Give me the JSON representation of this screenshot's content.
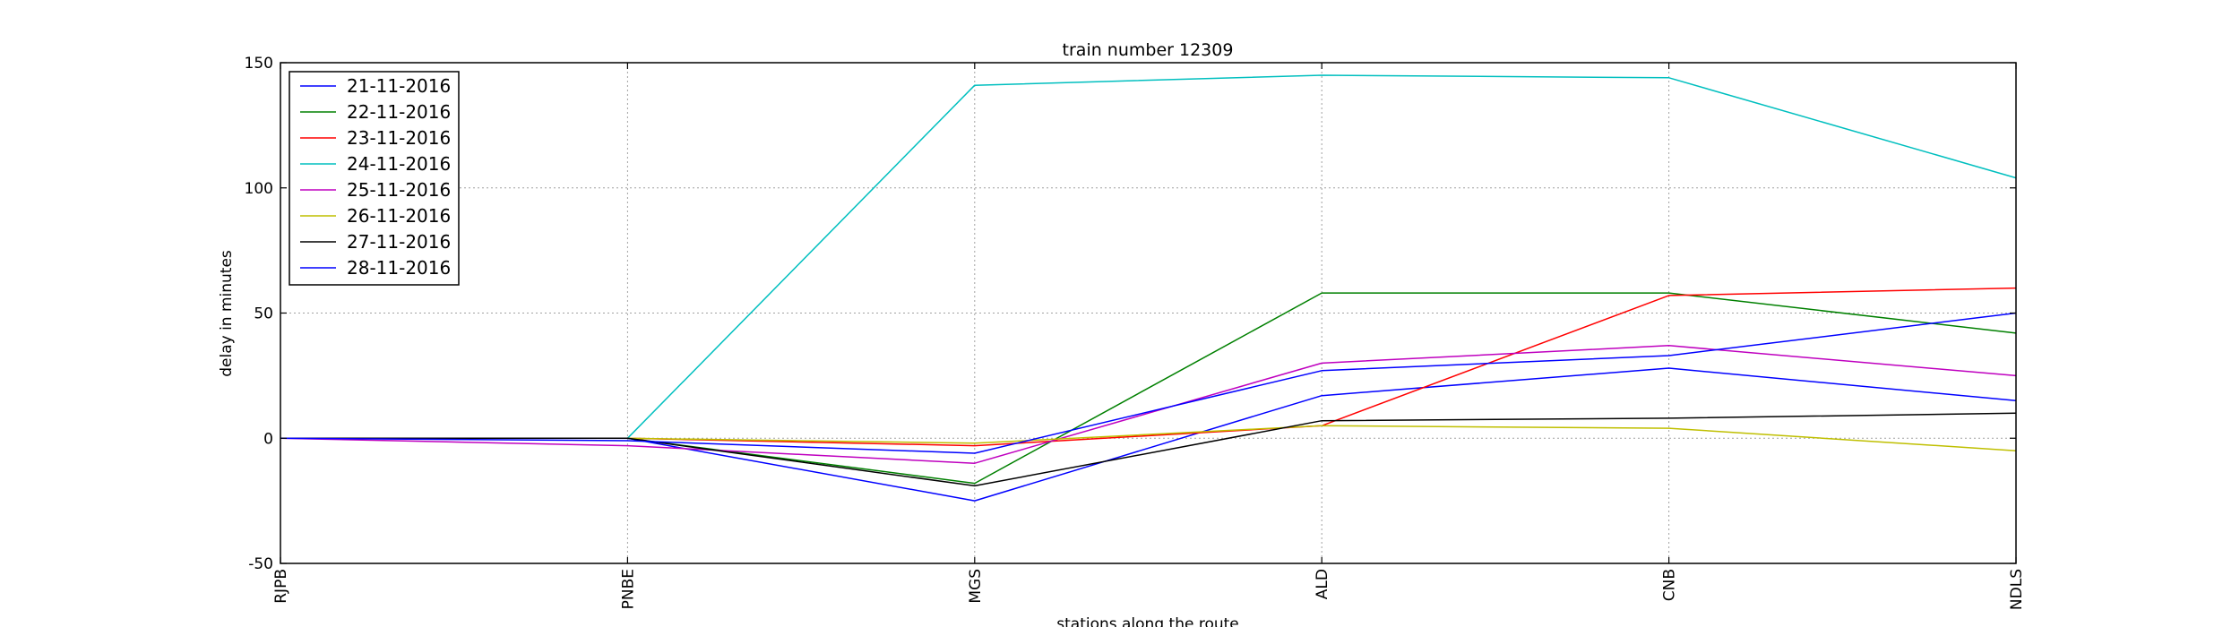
{
  "chart_data": {
    "type": "line",
    "title": "train number 12309",
    "xlabel": "stations along the route",
    "ylabel": "delay in minutes",
    "categories": [
      "RJPB",
      "PNBE",
      "MGS",
      "ALD",
      "CNB",
      "NDLS"
    ],
    "ylim": [
      -50,
      150
    ],
    "yticks": [
      -50,
      0,
      50,
      100,
      150
    ],
    "grid": true,
    "legend_position": "top-left",
    "series": [
      {
        "name": "21-11-2016",
        "color": "#0000ff",
        "values": [
          0,
          0,
          -25,
          17,
          28,
          15
        ]
      },
      {
        "name": "22-11-2016",
        "color": "#008000",
        "values": [
          0,
          0,
          -18,
          58,
          58,
          42
        ]
      },
      {
        "name": "23-11-2016",
        "color": "#ff0000",
        "values": [
          0,
          0,
          -3,
          5,
          57,
          60
        ]
      },
      {
        "name": "24-11-2016",
        "color": "#00bfbf",
        "values": [
          0,
          0,
          141,
          145,
          144,
          104
        ]
      },
      {
        "name": "25-11-2016",
        "color": "#bf00bf",
        "values": [
          0,
          -3,
          -10,
          30,
          37,
          25
        ]
      },
      {
        "name": "26-11-2016",
        "color": "#bfbf00",
        "values": [
          0,
          0,
          -2,
          5,
          4,
          -5
        ]
      },
      {
        "name": "27-11-2016",
        "color": "#000000",
        "values": [
          0,
          0,
          -19,
          7,
          8,
          10
        ]
      },
      {
        "name": "28-11-2016",
        "color": "#0000ff",
        "values": [
          0,
          -1,
          -6,
          27,
          33,
          50
        ]
      }
    ]
  }
}
